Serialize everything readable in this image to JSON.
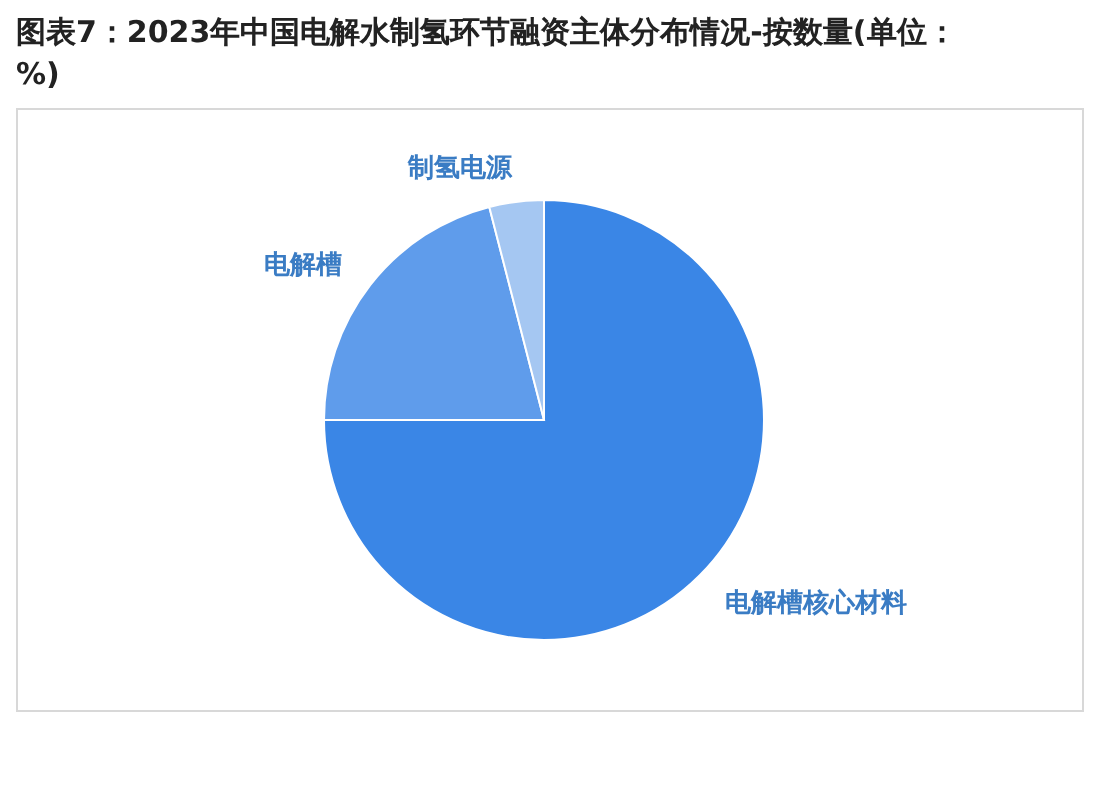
{
  "chart_data": {
    "type": "pie",
    "title": "图表7：2023年中国电解水制氢环节融资主体分布情况-按数量(单位：%)",
    "categories": [
      "电解槽核心材料",
      "电解槽",
      "制氢电源"
    ],
    "values": [
      75,
      21,
      4
    ],
    "colors": [
      "#3a86e6",
      "#5f9ceb",
      "#a5c7f2"
    ],
    "legend": false
  }
}
